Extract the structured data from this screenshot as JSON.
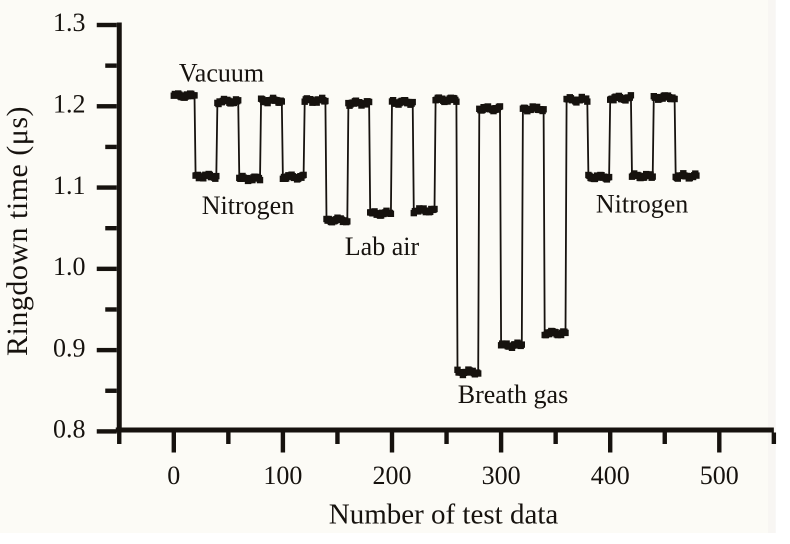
{
  "colors": {
    "ink": "#16120e",
    "figure_background": "#fcfbf6",
    "page_background": "#ffffff"
  },
  "chart_data": {
    "type": "line",
    "title": "",
    "xlabel": "Number of test data",
    "ylabel": "Ringdown time (μs)",
    "xlim": [
      -50,
      550
    ],
    "ylim": [
      0.8,
      1.3
    ],
    "x_tick_labels": [
      "0",
      "100",
      "200",
      "300",
      "400",
      "500"
    ],
    "x_ticks": [
      0,
      100,
      200,
      300,
      400,
      500
    ],
    "x_minor_ticks": [
      -50,
      50,
      150,
      250,
      350,
      450,
      550
    ],
    "y_tick_labels": [
      "0.8",
      "0.9",
      "1.0",
      "1.1",
      "1.2",
      "1.3"
    ],
    "y_ticks": [
      0.8,
      0.9,
      1.0,
      1.1,
      1.2,
      1.3
    ],
    "y_minor_ticks": [
      0.85,
      0.95,
      1.05,
      1.15,
      1.25
    ],
    "grid": false,
    "legend": false,
    "marker": "square",
    "points_per_segment": 20,
    "segments": [
      {
        "sample": "Vacuum",
        "x_start": 0,
        "x_end": 20,
        "ringdown_us": 1.213
      },
      {
        "sample": "Nitrogen",
        "x_start": 20,
        "x_end": 40,
        "ringdown_us": 1.114
      },
      {
        "sample": "Vacuum",
        "x_start": 40,
        "x_end": 60,
        "ringdown_us": 1.206
      },
      {
        "sample": "Nitrogen",
        "x_start": 60,
        "x_end": 80,
        "ringdown_us": 1.111
      },
      {
        "sample": "Vacuum",
        "x_start": 80,
        "x_end": 100,
        "ringdown_us": 1.207
      },
      {
        "sample": "Nitrogen",
        "x_start": 100,
        "x_end": 120,
        "ringdown_us": 1.113
      },
      {
        "sample": "Vacuum",
        "x_start": 120,
        "x_end": 140,
        "ringdown_us": 1.207
      },
      {
        "sample": "Lab air",
        "x_start": 140,
        "x_end": 160,
        "ringdown_us": 1.06
      },
      {
        "sample": "Vacuum",
        "x_start": 160,
        "x_end": 180,
        "ringdown_us": 1.204
      },
      {
        "sample": "Lab air",
        "x_start": 180,
        "x_end": 200,
        "ringdown_us": 1.068
      },
      {
        "sample": "Vacuum",
        "x_start": 200,
        "x_end": 220,
        "ringdown_us": 1.205
      },
      {
        "sample": "Lab air",
        "x_start": 220,
        "x_end": 240,
        "ringdown_us": 1.072
      },
      {
        "sample": "Vacuum",
        "x_start": 240,
        "x_end": 260,
        "ringdown_us": 1.208
      },
      {
        "sample": "Breath gas",
        "x_start": 260,
        "x_end": 280,
        "ringdown_us": 0.873
      },
      {
        "sample": "Vacuum",
        "x_start": 280,
        "x_end": 300,
        "ringdown_us": 1.197
      },
      {
        "sample": "Breath gas",
        "x_start": 300,
        "x_end": 320,
        "ringdown_us": 0.906
      },
      {
        "sample": "Vacuum",
        "x_start": 320,
        "x_end": 340,
        "ringdown_us": 1.197
      },
      {
        "sample": "Breath gas",
        "x_start": 340,
        "x_end": 360,
        "ringdown_us": 0.921
      },
      {
        "sample": "Vacuum",
        "x_start": 360,
        "x_end": 380,
        "ringdown_us": 1.208
      },
      {
        "sample": "Nitrogen",
        "x_start": 380,
        "x_end": 400,
        "ringdown_us": 1.113
      },
      {
        "sample": "Vacuum",
        "x_start": 400,
        "x_end": 420,
        "ringdown_us": 1.21
      },
      {
        "sample": "Nitrogen",
        "x_start": 420,
        "x_end": 440,
        "ringdown_us": 1.114
      },
      {
        "sample": "Vacuum",
        "x_start": 440,
        "x_end": 460,
        "ringdown_us": 1.211
      },
      {
        "sample": "Nitrogen",
        "x_start": 460,
        "x_end": 480,
        "ringdown_us": 1.114
      }
    ],
    "annotations": [
      {
        "text": "Vacuum",
        "x": 43.7,
        "y": 1.2403
      },
      {
        "text": "Nitrogen",
        "x": 68.0,
        "y": 1.0742
      },
      {
        "text": "Lab air",
        "x": 190.8,
        "y": 1.0275
      },
      {
        "text": "Breath gas",
        "x": 310.9,
        "y": 0.8423
      },
      {
        "text": "Nitrogen",
        "x": 429.2,
        "y": 1.0761
      }
    ]
  }
}
